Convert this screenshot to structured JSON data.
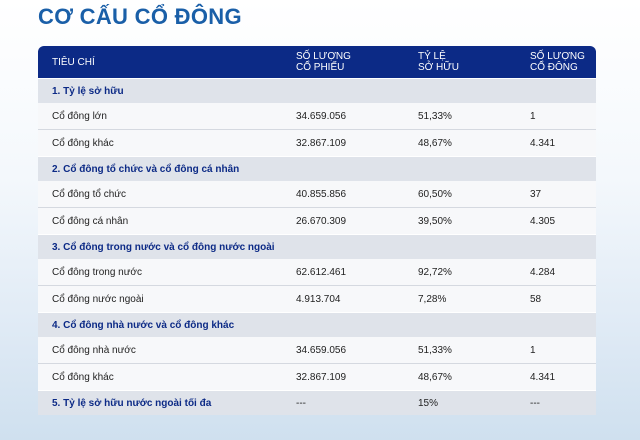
{
  "title": "CƠ CẤU CỔ ĐÔNG",
  "header": {
    "col1": "TIÊU CHÍ",
    "col2_line1": "SỐ LƯỢNG",
    "col2_line2": "CỔ PHIẾU",
    "col3_line1": "TỶ LỆ",
    "col3_line2": "SỞ HỮU",
    "col4_line1": "SỐ LƯỢNG",
    "col4_line2": "CỔ ĐÔNG"
  },
  "sections": [
    {
      "title": "1. Tỷ lệ sở hữu",
      "rows": [
        {
          "label": "Cổ đông lớn",
          "shares": "34.659.056",
          "ratio": "51,33%",
          "holders": "1"
        },
        {
          "label": "Cổ đông khác",
          "shares": "32.867.109",
          "ratio": "48,67%",
          "holders": "4.341"
        }
      ]
    },
    {
      "title": "2. Cổ đông tổ chức và cổ đông cá nhân",
      "rows": [
        {
          "label": "Cổ đông tổ chức",
          "shares": "40.855.856",
          "ratio": "60,50%",
          "holders": "37"
        },
        {
          "label": "Cổ đông cá nhân",
          "shares": "26.670.309",
          "ratio": "39,50%",
          "holders": "4.305"
        }
      ]
    },
    {
      "title": "3. Cổ đông trong nước và cổ đông nước ngoài",
      "rows": [
        {
          "label": "Cổ đông trong nước",
          "shares": "62.612.461",
          "ratio": "92,72%",
          "holders": "4.284"
        },
        {
          "label": "Cổ đông nước ngoài",
          "shares": "4.913.704",
          "ratio": "7,28%",
          "holders": "58"
        }
      ]
    },
    {
      "title": "4. Cổ đông nhà nước và cổ đông khác",
      "rows": [
        {
          "label": "Cổ đông nhà nước",
          "shares": "34.659.056",
          "ratio": "51,33%",
          "holders": "1"
        },
        {
          "label": "Cổ đông khác",
          "shares": "32.867.109",
          "ratio": "48,67%",
          "holders": "4.341"
        }
      ]
    }
  ],
  "final": {
    "title": "5. Tỷ lệ sở hữu nước ngoài tối đa",
    "shares": "---",
    "ratio": "15%",
    "holders": "---"
  }
}
